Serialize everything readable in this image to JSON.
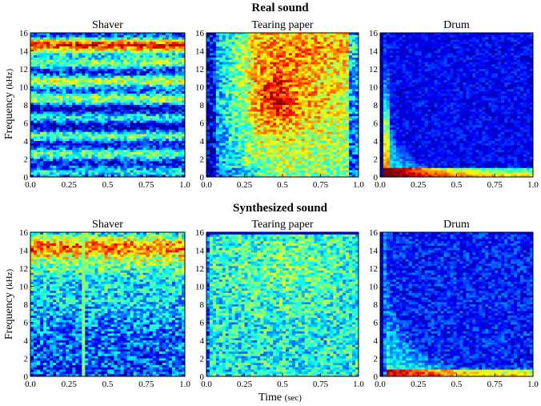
{
  "figure": {
    "sections": [
      {
        "title": "Real sound"
      },
      {
        "title": "Synthesized sound"
      }
    ],
    "ylabel": "Frequency",
    "ylabel_unit": "(kHz)",
    "xlabel": "Time",
    "xlabel_unit": "(sec)"
  },
  "colormap": "jet",
  "chart_data": [
    {
      "type": "heatmap",
      "title": "Shaver",
      "row": "Real sound",
      "x_ticks": [
        "0.0",
        "0.25",
        "0.5",
        "0.75",
        "1.0"
      ],
      "y_ticks": [
        "0",
        "2",
        "4",
        "6",
        "8",
        "10",
        "12",
        "14",
        "16"
      ],
      "xlim": [
        0,
        1
      ],
      "ylim": [
        0,
        16
      ],
      "description_data": {
        "kind": "shaver_real"
      }
    },
    {
      "type": "heatmap",
      "title": "Tearing paper",
      "row": "Real sound",
      "x_ticks": [
        "0.0",
        "0.25",
        "0.5",
        "0.75",
        "1.0"
      ],
      "y_ticks": [
        "0",
        "2",
        "4",
        "6",
        "8",
        "10",
        "12",
        "14",
        "16"
      ],
      "xlim": [
        0,
        1
      ],
      "ylim": [
        0,
        16
      ],
      "description_data": {
        "kind": "paper_real"
      }
    },
    {
      "type": "heatmap",
      "title": "Drum",
      "row": "Real sound",
      "x_ticks": [
        "0.0",
        "0.25",
        "0.5",
        "0.75",
        "1.0"
      ],
      "y_ticks": [
        "0",
        "2",
        "4",
        "6",
        "8",
        "10",
        "12",
        "14",
        "16"
      ],
      "xlim": [
        0,
        1
      ],
      "ylim": [
        0,
        16
      ],
      "description_data": {
        "kind": "drum_real"
      }
    },
    {
      "type": "heatmap",
      "title": "Shaver",
      "row": "Synthesized sound",
      "x_ticks": [
        "0.0",
        "0.25",
        "0.5",
        "0.75",
        "1.0"
      ],
      "y_ticks": [
        "0",
        "2",
        "4",
        "6",
        "8",
        "10",
        "12",
        "14",
        "16"
      ],
      "xlim": [
        0,
        1
      ],
      "ylim": [
        0,
        16
      ],
      "description_data": {
        "kind": "shaver_synth"
      }
    },
    {
      "type": "heatmap",
      "title": "Tearing paper",
      "row": "Synthesized sound",
      "x_ticks": [
        "0.0",
        "0.25",
        "0.5",
        "0.75",
        "1.0"
      ],
      "y_ticks": [
        "0",
        "2",
        "4",
        "6",
        "8",
        "10",
        "12",
        "14",
        "16"
      ],
      "xlim": [
        0,
        1
      ],
      "ylim": [
        0,
        16
      ],
      "description_data": {
        "kind": "paper_synth"
      }
    },
    {
      "type": "heatmap",
      "title": "Drum",
      "row": "Synthesized sound",
      "x_ticks": [
        "0.0",
        "0.25",
        "0.5",
        "0.75",
        "1.0"
      ],
      "y_ticks": [
        "0",
        "2",
        "4",
        "6",
        "8",
        "10",
        "12",
        "14",
        "16"
      ],
      "xlim": [
        0,
        1
      ],
      "ylim": [
        0,
        16
      ],
      "description_data": {
        "kind": "drum_synth"
      }
    }
  ]
}
